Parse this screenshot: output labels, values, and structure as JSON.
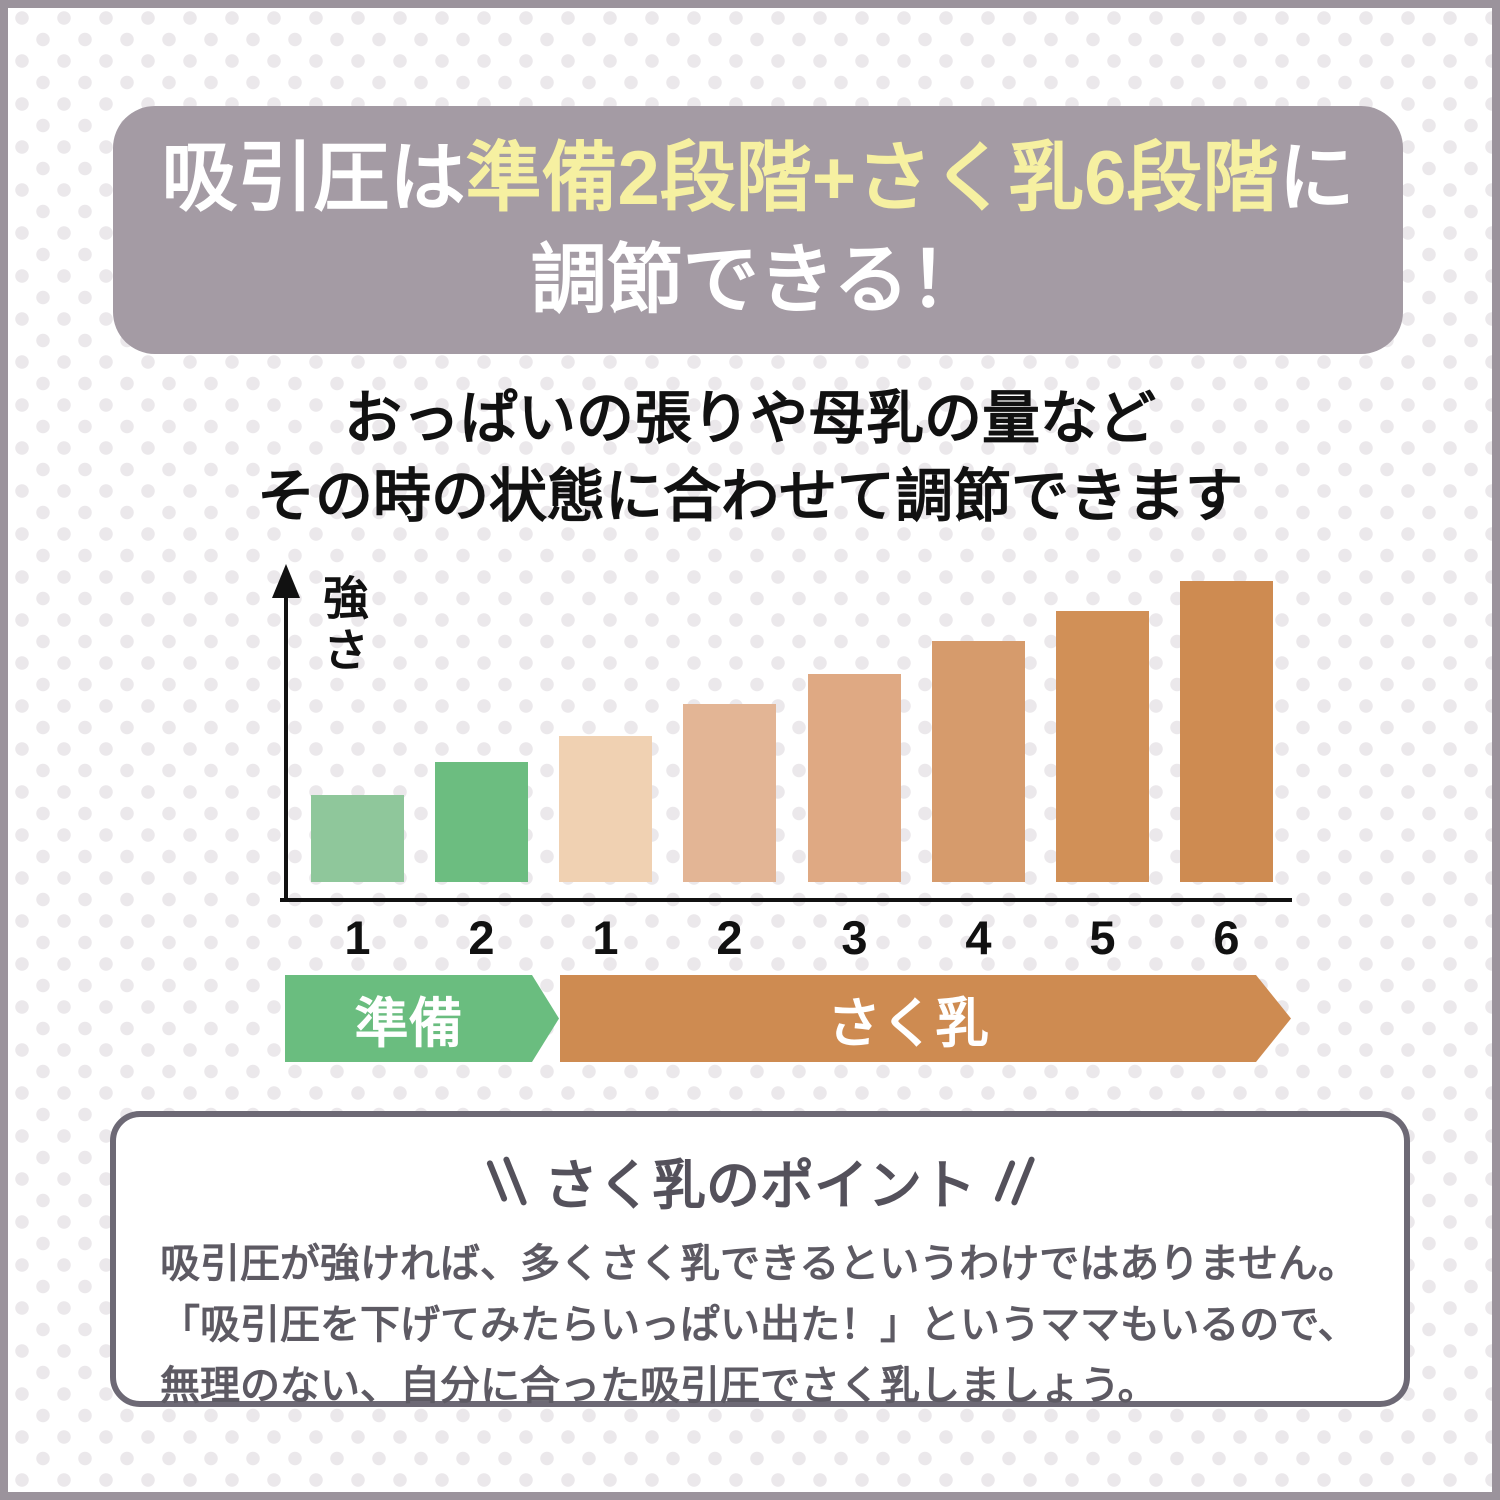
{
  "page": {
    "frame_color": "#9b939c",
    "dot_color": "#ebe8eb"
  },
  "header": {
    "bg_color": "#a49ba4",
    "text_color": "#ffffff",
    "highlight_color": "#f6f0a1",
    "line1_white1": "吸引圧は",
    "line1_yellow": "準備2段階+さく乳6段階",
    "line1_white2": "に",
    "line2": "調節できる！"
  },
  "subtitle": {
    "line1": "おっぱいの張りや母乳の量など",
    "line2": "その時の状態に合わせて調節できます"
  },
  "chart_data": {
    "type": "bar",
    "title": "",
    "xlabel": "",
    "ylabel": "強さ",
    "categories": [
      "1",
      "2",
      "1",
      "2",
      "3",
      "4",
      "5",
      "6"
    ],
    "values": [
      29,
      40,
      48.5,
      59,
      69,
      80,
      90,
      100
    ],
    "value_note": "relative suction strength, % of tallest bar (no numeric axis shown)",
    "bar_colors": [
      "#8fc79b",
      "#6cbd80",
      "#f0d1b2",
      "#e3b595",
      "#dfa983",
      "#d69b6c",
      "#d19057",
      "#ce8b51"
    ],
    "groups": [
      {
        "label": "準備",
        "color": "#6abd7f",
        "bar_count": 2
      },
      {
        "label": "さく乳",
        "color": "#ce8b51",
        "bar_count": 6
      }
    ],
    "axis_color": "#111111",
    "grid": false,
    "legend_position": "arrow banners below x-axis"
  },
  "point_box": {
    "border_color": "#6d6975",
    "text_color": "#5d5a63",
    "title": "さく乳のポイント",
    "body_lines": [
      "吸引圧が強ければ、多くさく乳できるというわけではありません。",
      "「吸引圧を下げてみたらいっぱい出た！」というママもいるので、",
      "無理のない、自分に合った吸引圧でさく乳しましょう。"
    ]
  }
}
